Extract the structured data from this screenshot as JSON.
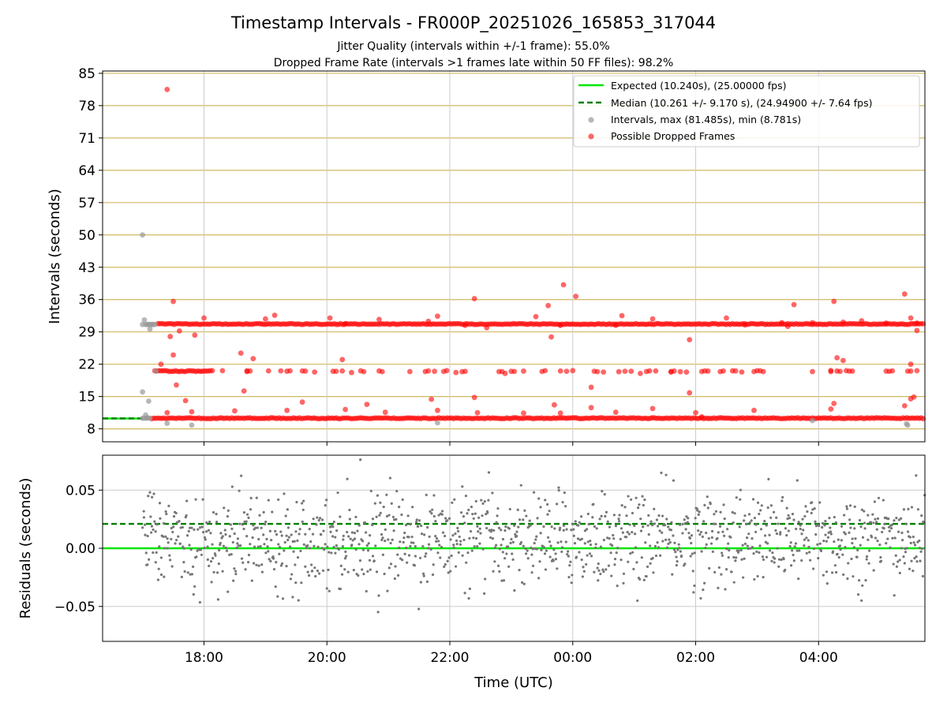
{
  "chart_data": {
    "type": "scatter",
    "title": "Timestamp Intervals - FR000P_20251026_165853_317044",
    "subtitle_lines": [
      "Jitter Quality (intervals within +/-1 frame): 55.0%",
      "Dropped Frame Rate (intervals >1 frames late within 50 FF files): 98.2%"
    ],
    "xlabel": "Time (UTC)",
    "x_axis": {
      "unit": "hours since 00:00 UTC",
      "range": [
        -7.65,
        5.73
      ],
      "ticks": [
        {
          "value": -6,
          "label": "18:00"
        },
        {
          "value": -4,
          "label": "20:00"
        },
        {
          "value": -2,
          "label": "22:00"
        },
        {
          "value": 0,
          "label": "00:00"
        },
        {
          "value": 2,
          "label": "02:00"
        },
        {
          "value": 4,
          "label": "04:00"
        }
      ]
    },
    "panels": [
      {
        "id": "intervals",
        "ylabel": "Intervals (seconds)",
        "ylim": [
          5.2,
          85.5
        ],
        "yticks": [
          8,
          15,
          22,
          29,
          36,
          43,
          50,
          57,
          64,
          71,
          78,
          85
        ],
        "grid": true,
        "legend": {
          "position": "top-right",
          "entries": [
            {
              "label": "Expected (10.240s), (25.00000 fps)",
              "style": "solid-line",
              "color": "#00e600"
            },
            {
              "label": "Median (10.261 +/- 9.170 s), (24.94900 +/- 7.64 fps)",
              "style": "dashed-line",
              "color": "#008000"
            },
            {
              "label": "Intervals, max (81.485s), min (8.781s)",
              "style": "marker",
              "color": "#999999"
            },
            {
              "label": "Possible Dropped Frames",
              "style": "marker",
              "color": "#ff0000"
            }
          ]
        },
        "reference_lines": [
          {
            "name": "expected",
            "value": 10.24,
            "x_end": -7.0,
            "color": "#00e600",
            "style": "solid"
          },
          {
            "name": "median",
            "value": 10.261,
            "x_end": -7.0,
            "color": "#008000",
            "style": "dashed"
          }
        ],
        "bands": [
          {
            "name": "band-10s",
            "y": 10.3,
            "x_range": [
              -6.85,
              5.73
            ],
            "color": "#ff0000"
          },
          {
            "name": "band-20s",
            "y": 20.5,
            "x_range": [
              -6.8,
              -5.85
            ],
            "color": "#ff0000"
          },
          {
            "name": "band-30s",
            "y": 30.7,
            "x_range": [
              -6.75,
              5.73
            ],
            "color": "#ff0000"
          }
        ],
        "series": [
          {
            "name": "Intervals",
            "color": "#999999",
            "points": [
              [
                -7.0,
                10.3
              ],
              [
                -7.0,
                30.6
              ],
              [
                -7.0,
                16.0
              ],
              [
                -7.0,
                50.0
              ],
              [
                -6.97,
                31.6
              ],
              [
                -6.95,
                30.6
              ],
              [
                -6.92,
                30.6
              ],
              [
                -6.9,
                30.6
              ],
              [
                -6.87,
                30.6
              ],
              [
                -6.85,
                30.6
              ],
              [
                -6.83,
                30.6
              ],
              [
                -6.8,
                30.6
              ],
              [
                -6.95,
                11.0
              ],
              [
                -6.92,
                10.4
              ],
              [
                -6.9,
                14.0
              ],
              [
                -6.88,
                29.6
              ],
              [
                -6.78,
                20.5
              ],
              [
                -6.6,
                9.2
              ],
              [
                -6.2,
                8.8
              ],
              [
                -2.2,
                9.3
              ],
              [
                3.9,
                9.8
              ],
              [
                5.43,
                9.1
              ],
              [
                5.45,
                8.8
              ],
              [
                -6.97,
                10.3
              ],
              [
                -6.93,
                10.3
              ],
              [
                -6.88,
                10.3
              ]
            ]
          },
          {
            "name": "Possible Dropped Frames",
            "color": "#ff0000",
            "points": [
              [
                -6.6,
                81.5
              ],
              [
                -6.5,
                35.6
              ],
              [
                -6.7,
                22.0
              ],
              [
                -6.55,
                28.0
              ],
              [
                -6.4,
                29.2
              ],
              [
                -6.15,
                28.3
              ],
              [
                -6.45,
                17.5
              ],
              [
                -6.3,
                14.1
              ],
              [
                -6.5,
                24.0
              ],
              [
                -6.6,
                11.5
              ],
              [
                -6.2,
                11.7
              ],
              [
                -6.0,
                32.0
              ],
              [
                -5.7,
                20.6
              ],
              [
                -5.3,
                20.4
              ],
              [
                -5.2,
                23.2
              ],
              [
                -5.4,
                24.4
              ],
              [
                -5.5,
                11.9
              ],
              [
                -5.35,
                16.2
              ],
              [
                -5.0,
                31.8
              ],
              [
                -4.85,
                32.6
              ],
              [
                -4.65,
                12.0
              ],
              [
                -4.4,
                13.8
              ],
              [
                -4.2,
                20.3
              ],
              [
                -3.95,
                32.0
              ],
              [
                -3.7,
                30.8
              ],
              [
                -3.75,
                23.0
              ],
              [
                -3.7,
                12.2
              ],
              [
                -3.6,
                20.2
              ],
              [
                -3.35,
                13.3
              ],
              [
                -3.15,
                31.7
              ],
              [
                -3.05,
                11.6
              ],
              [
                -2.65,
                20.4
              ],
              [
                -2.35,
                31.3
              ],
              [
                -2.2,
                32.4
              ],
              [
                -2.2,
                12.0
              ],
              [
                -2.3,
                14.4
              ],
              [
                -1.9,
                20.2
              ],
              [
                -1.75,
                30.4
              ],
              [
                -1.6,
                36.2
              ],
              [
                -1.6,
                14.8
              ],
              [
                -1.55,
                11.5
              ],
              [
                -1.4,
                29.9
              ],
              [
                -1.1,
                20.0
              ],
              [
                -0.8,
                20.5
              ],
              [
                -0.8,
                11.4
              ],
              [
                -0.6,
                32.3
              ],
              [
                -0.45,
                20.6
              ],
              [
                -0.4,
                34.7
              ],
              [
                -0.35,
                27.9
              ],
              [
                -0.3,
                13.2
              ],
              [
                -0.2,
                30.4
              ],
              [
                -0.2,
                11.4
              ],
              [
                -0.15,
                39.2
              ],
              [
                0.05,
                36.7
              ],
              [
                0.3,
                17.0
              ],
              [
                0.3,
                12.6
              ],
              [
                0.5,
                20.3
              ],
              [
                0.7,
                30.4
              ],
              [
                0.8,
                32.5
              ],
              [
                0.7,
                11.6
              ],
              [
                1.1,
                20.0
              ],
              [
                1.3,
                31.8
              ],
              [
                1.3,
                12.4
              ],
              [
                1.6,
                20.3
              ],
              [
                1.85,
                20.3
              ],
              [
                1.9,
                27.3
              ],
              [
                1.9,
                15.8
              ],
              [
                2.0,
                11.5
              ],
              [
                2.2,
                20.5
              ],
              [
                2.1,
                10.6
              ],
              [
                2.4,
                20.4
              ],
              [
                2.5,
                32.0
              ],
              [
                2.75,
                20.3
              ],
              [
                2.8,
                30.5
              ],
              [
                2.95,
                12.0
              ],
              [
                3.1,
                20.4
              ],
              [
                3.4,
                31.0
              ],
              [
                3.5,
                30.2
              ],
              [
                3.6,
                34.9
              ],
              [
                3.9,
                20.4
              ],
              [
                3.9,
                31.0
              ],
              [
                4.2,
                20.4
              ],
              [
                4.3,
                23.4
              ],
              [
                4.4,
                22.8
              ],
              [
                4.2,
                12.3
              ],
              [
                4.25,
                13.5
              ],
              [
                4.25,
                35.6
              ],
              [
                4.4,
                31.1
              ],
              [
                4.55,
                20.5
              ],
              [
                4.7,
                31.4
              ],
              [
                5.1,
                20.5
              ],
              [
                5.1,
                30.9
              ],
              [
                5.4,
                37.2
              ],
              [
                5.5,
                32.0
              ],
              [
                5.5,
                22.0
              ],
              [
                5.4,
                13.0
              ],
              [
                5.5,
                14.5
              ],
              [
                5.55,
                14.9
              ],
              [
                5.6,
                29.3
              ],
              [
                5.6,
                30.9
              ],
              [
                5.6,
                20.6
              ]
            ]
          }
        ]
      },
      {
        "id": "residuals",
        "ylabel": "Residuals (seconds)",
        "ylim": [
          -0.08,
          0.08
        ],
        "yticks": [
          {
            "value": 0.05,
            "label": "0.05"
          },
          {
            "value": 0.0,
            "label": "0.00"
          },
          {
            "value": -0.05,
            "label": "−0.05"
          }
        ],
        "grid": true,
        "reference_lines": [
          {
            "name": "expected",
            "value": 0.0,
            "color": "#00e600",
            "style": "solid"
          },
          {
            "name": "median",
            "value": 0.021,
            "color": "#008000",
            "style": "dashed"
          }
        ],
        "series": [
          {
            "name": "Residuals",
            "color": "#777777",
            "x_range": [
              -7.0,
              5.73
            ],
            "count": 1250,
            "mean": 0.008,
            "spread": 0.02,
            "max_abs": 0.079
          }
        ]
      }
    ]
  }
}
